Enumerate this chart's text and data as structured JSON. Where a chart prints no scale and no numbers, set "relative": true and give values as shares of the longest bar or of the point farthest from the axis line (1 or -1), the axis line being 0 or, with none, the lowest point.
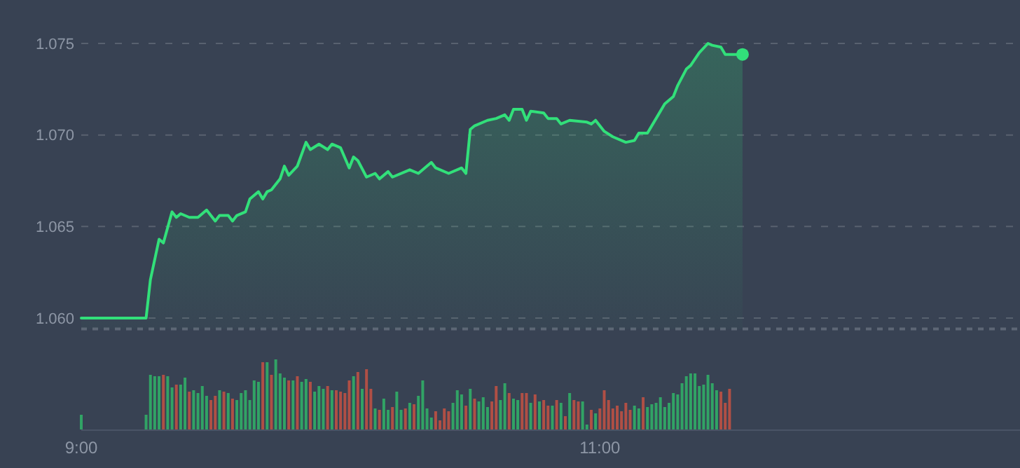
{
  "chart_data": [
    {
      "type": "area",
      "xlim": [
        9,
        12.62
      ],
      "ylim": [
        1.0594,
        1.075
      ],
      "yticks": [
        {
          "value": 1.06,
          "label": "1.060"
        },
        {
          "value": 1.065,
          "label": "1.065"
        },
        {
          "value": 1.07,
          "label": "1.070"
        },
        {
          "value": 1.075,
          "label": "1.075"
        }
      ],
      "grid": "y",
      "tick_labels": "y",
      "series": [
        {
          "color": "#32e07a",
          "x": [
            9,
            9.25,
            9.2667,
            9.3,
            9.3167,
            9.35,
            9.3667,
            9.3833,
            9.4167,
            9.45,
            9.4833,
            9.5167,
            9.5333,
            9.5667,
            9.5833,
            9.6,
            9.6333,
            9.65,
            9.6833,
            9.7,
            9.7167,
            9.7333,
            9.7667,
            9.7833,
            9.8,
            9.8333,
            9.8667,
            9.8833,
            9.9167,
            9.95,
            9.9667,
            10,
            10.0333,
            10.05,
            10.0667,
            10.1,
            10.1333,
            10.15,
            10.1833,
            10.2,
            10.2667,
            10.3,
            10.35,
            10.3667,
            10.4167,
            10.4667,
            10.4833,
            10.5,
            10.5167,
            10.5667,
            10.6,
            10.6333,
            10.65,
            10.6667,
            10.7,
            10.7167,
            10.7333,
            10.7833,
            10.8,
            10.8333,
            10.85,
            10.8833,
            10.95,
            10.9667,
            10.9833,
            11.0167,
            11.05,
            11.1,
            11.1333,
            11.15,
            11.1833,
            11.2167,
            11.25,
            11.2833,
            11.3,
            11.3333,
            11.35,
            11.3833,
            11.4167,
            11.4333,
            11.4667,
            11.4833,
            11.55
          ],
          "values": [
            1.06,
            1.06,
            1.0621,
            1.0643,
            1.0641,
            1.0658,
            1.0655,
            1.0657,
            1.0655,
            1.0655,
            1.0659,
            1.0653,
            1.0656,
            1.0656,
            1.0653,
            1.0656,
            1.0658,
            1.0665,
            1.0669,
            1.0665,
            1.0669,
            1.067,
            1.0676,
            1.0683,
            1.0678,
            1.0683,
            1.0696,
            1.0692,
            1.0695,
            1.0692,
            1.0695,
            1.0693,
            1.0682,
            1.0688,
            1.0686,
            1.0677,
            1.0679,
            1.0676,
            1.068,
            1.0677,
            1.0681,
            1.0679,
            1.0685,
            1.0682,
            1.0679,
            1.0682,
            1.0679,
            1.0703,
            1.0705,
            1.0708,
            1.0709,
            1.0711,
            1.0708,
            1.0714,
            1.0714,
            1.0708,
            1.0713,
            1.0712,
            1.0709,
            1.0709,
            1.0706,
            1.0708,
            1.0707,
            1.0706,
            1.0708,
            1.0702,
            1.0699,
            1.0696,
            1.0697,
            1.0701,
            1.0701,
            1.0709,
            1.0717,
            1.0721,
            1.0727,
            1.0736,
            1.0738,
            1.0745,
            1.075,
            1.0749,
            1.0748,
            1.0744,
            1.0744
          ]
        },
        {
          "type": "scatter",
          "color": "#32e07a",
          "x": [
            11.55
          ],
          "values": [
            1.0744
          ]
        }
      ]
    },
    {
      "type": "bar",
      "relative": true,
      "xlim": [
        9,
        12.62
      ],
      "xticks": [
        {
          "value": 9,
          "label": "9:00"
        },
        {
          "value": 11,
          "label": "11:00"
        }
      ],
      "tick_labels": "x",
      "x": [
        9,
        9.25,
        9.2667,
        9.2833,
        9.3,
        9.3167,
        9.3333,
        9.35,
        9.3667,
        9.3833,
        9.4,
        9.4167,
        9.4333,
        9.45,
        9.4667,
        9.4833,
        9.5,
        9.5167,
        9.5333,
        9.55,
        9.5667,
        9.5833,
        9.6,
        9.6167,
        9.6333,
        9.65,
        9.6667,
        9.6833,
        9.7,
        9.7167,
        9.7333,
        9.75,
        9.7667,
        9.7833,
        9.8,
        9.8167,
        9.8333,
        9.85,
        9.8667,
        9.8833,
        9.9,
        9.9167,
        9.9333,
        9.95,
        9.9667,
        9.9833,
        10,
        10.0167,
        10.0333,
        10.05,
        10.0667,
        10.0833,
        10.1,
        10.1167,
        10.1333,
        10.15,
        10.1667,
        10.1833,
        10.2,
        10.2167,
        10.2333,
        10.25,
        10.2667,
        10.2833,
        10.3,
        10.3167,
        10.3333,
        10.35,
        10.3667,
        10.3833,
        10.4,
        10.4167,
        10.4333,
        10.45,
        10.4667,
        10.4833,
        10.5,
        10.5167,
        10.5333,
        10.55,
        10.5667,
        10.5833,
        10.6,
        10.6167,
        10.6333,
        10.65,
        10.6667,
        10.6833,
        10.7,
        10.7167,
        10.7333,
        10.75,
        10.7667,
        10.7833,
        10.8,
        10.8167,
        10.8333,
        10.85,
        10.8667,
        10.8833,
        10.9,
        10.9167,
        10.9333,
        10.95,
        10.9667,
        10.9833,
        11,
        11.0167,
        11.0333,
        11.05,
        11.0667,
        11.0833,
        11.1,
        11.1167,
        11.1333,
        11.15,
        11.1667,
        11.1833,
        11.2,
        11.2167,
        11.2333,
        11.25,
        11.2667,
        11.2833,
        11.3,
        11.3167,
        11.3333,
        11.35,
        11.3667,
        11.3833,
        11.4,
        11.4167,
        11.4333,
        11.45,
        11.4667,
        11.4833,
        11.5
      ],
      "series": [
        {
          "values": [
            0.21,
            0.21,
            0.78,
            0.76,
            0.76,
            0.78,
            0.76,
            0.6,
            0.64,
            0.64,
            0.74,
            0.54,
            0.56,
            0.52,
            0.62,
            0.48,
            0.42,
            0.48,
            0.56,
            0.54,
            0.52,
            0.44,
            0.42,
            0.52,
            0.56,
            0.42,
            0.7,
            0.68,
            0.96,
            0.96,
            0.78,
            1,
            0.8,
            0.74,
            0.7,
            0.7,
            0.76,
            0.68,
            0.72,
            0.68,
            0.54,
            0.62,
            0.58,
            0.62,
            0.56,
            0.56,
            0.54,
            0.52,
            0.7,
            0.76,
            0.82,
            0.58,
            0.86,
            0.58,
            0.3,
            0.28,
            0.44,
            0.28,
            0.32,
            0.54,
            0.28,
            0.3,
            0.38,
            0.36,
            0.48,
            0.7,
            0.3,
            0.17,
            0.26,
            0.13,
            0.3,
            0.26,
            0.38,
            0.56,
            0.5,
            0.34,
            0.58,
            0.44,
            0.4,
            0.46,
            0.32,
            0.4,
            0.62,
            0.42,
            0.66,
            0.52,
            0.44,
            0.42,
            0.52,
            0.52,
            0.38,
            0.5,
            0.4,
            0.42,
            0.34,
            0.34,
            0.42,
            0.38,
            0.19,
            0.52,
            0.42,
            0.4,
            0.4,
            0.07,
            0.28,
            0.23,
            0.3,
            0.56,
            0.42,
            0.3,
            0.34,
            0.26,
            0.38,
            0.28,
            0.34,
            0.3,
            0.46,
            0.32,
            0.36,
            0.38,
            0.46,
            0.32,
            0.38,
            0.52,
            0.5,
            0.66,
            0.76,
            0.8,
            0.8,
            0.62,
            0.64,
            0.78,
            0.66,
            0.56,
            0.54,
            0.38,
            0.58
          ],
          "colors": [
            "#31a365",
            "#31a365",
            "#31a365",
            "#31a365",
            "#31a365",
            "#b04f45",
            "#31a365",
            "#31a365",
            "#b04f45",
            "#31a365",
            "#31a365",
            "#b04f45",
            "#31a365",
            "#31a365",
            "#31a365",
            "#31a365",
            "#b04f45",
            "#b04f45",
            "#31a365",
            "#b04f45",
            "#31a365",
            "#b04f45",
            "#31a365",
            "#31a365",
            "#31a365",
            "#31a365",
            "#31a365",
            "#31a365",
            "#b04f45",
            "#31a365",
            "#b04f45",
            "#31a365",
            "#31a365",
            "#31a365",
            "#b04f45",
            "#31a365",
            "#b04f45",
            "#31a365",
            "#31a365",
            "#b04f45",
            "#31a365",
            "#31a365",
            "#31a365",
            "#b04f45",
            "#31a365",
            "#b04f45",
            "#b04f45",
            "#b04f45",
            "#b04f45",
            "#31a365",
            "#b04f45",
            "#31a365",
            "#b04f45",
            "#b04f45",
            "#31a365",
            "#b04f45",
            "#31a365",
            "#31a365",
            "#b04f45",
            "#31a365",
            "#31a365",
            "#b04f45",
            "#31a365",
            "#b04f45",
            "#31a365",
            "#31a365",
            "#31a365",
            "#31a365",
            "#b04f45",
            "#b04f45",
            "#b04f45",
            "#b04f45",
            "#31a365",
            "#31a365",
            "#31a365",
            "#b04f45",
            "#31a365",
            "#b04f45",
            "#31a365",
            "#31a365",
            "#31a365",
            "#b04f45",
            "#b04f45",
            "#31a365",
            "#31a365",
            "#b04f45",
            "#31a365",
            "#31a365",
            "#b04f45",
            "#b04f45",
            "#31a365",
            "#b04f45",
            "#31a365",
            "#b04f45",
            "#b04f45",
            "#31a365",
            "#b04f45",
            "#31a365",
            "#b04f45",
            "#31a365",
            "#b04f45",
            "#b04f45",
            "#31a365",
            "#31a365",
            "#b04f45",
            "#31a365",
            "#b04f45",
            "#b04f45",
            "#b04f45",
            "#b04f45",
            "#b04f45",
            "#b04f45",
            "#b04f45",
            "#b04f45",
            "#31a365",
            "#31a365",
            "#b04f45",
            "#31a365",
            "#31a365",
            "#31a365",
            "#31a365",
            "#31a365",
            "#31a365",
            "#31a365",
            "#31a365",
            "#31a365",
            "#31a365",
            "#31a365",
            "#31a365",
            "#31a365",
            "#31a365",
            "#31a365",
            "#31a365",
            "#31a365",
            "#b04f45",
            "#b04f45",
            "#b04f45"
          ]
        }
      ]
    }
  ]
}
